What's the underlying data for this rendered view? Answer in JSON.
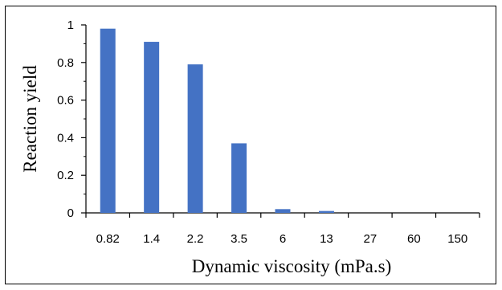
{
  "chart_data": {
    "type": "bar",
    "categories": [
      "0.82",
      "1.4",
      "2.2",
      "3.5",
      "6",
      "13",
      "27",
      "60",
      "150"
    ],
    "series": [
      {
        "values": [
          0.98,
          0.91,
          0.79,
          0.37,
          0.02,
          0.01,
          0,
          0,
          0
        ],
        "color": "#4472C4"
      }
    ],
    "ylim": [
      0,
      1
    ],
    "yticks": [
      "0",
      "0.2",
      "0.4",
      "0.6",
      "0.8",
      "1"
    ],
    "xlabel": "Dynamic viscosity (mPa.s)",
    "ylabel": "Reaction yield",
    "grid": false,
    "legend": "none"
  }
}
